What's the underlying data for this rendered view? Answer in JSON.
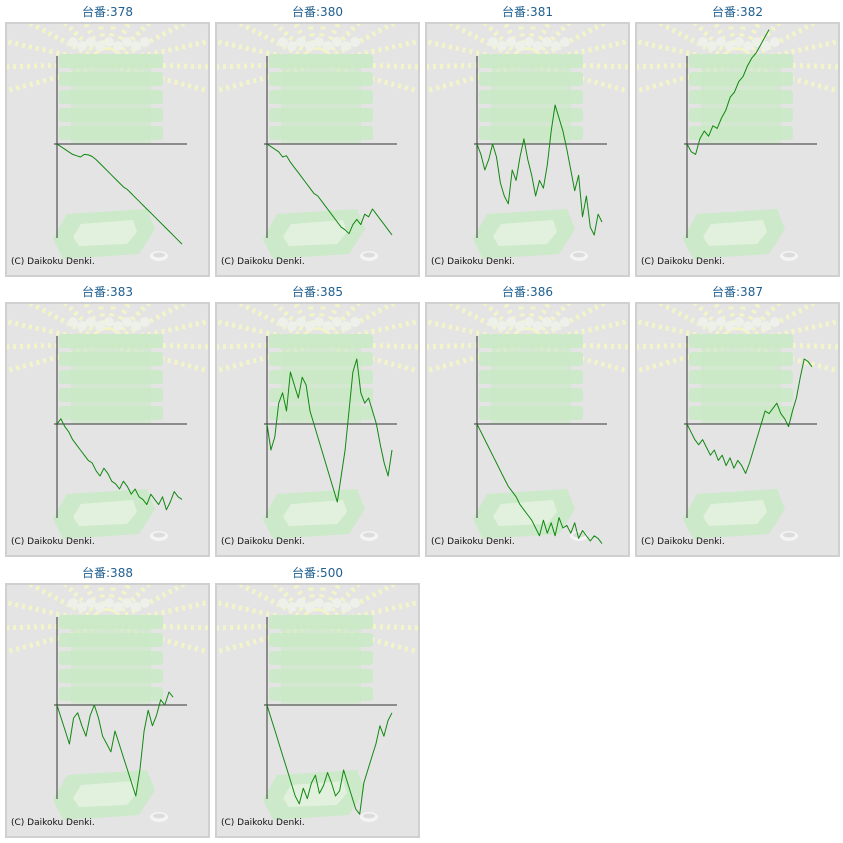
{
  "colors": {
    "title": "#1f5f8f",
    "line": "#118811",
    "axis": "#333333",
    "panel_bg": "#e4e4e4",
    "panel_border": "#d0d0d0",
    "watermark_green": "#c9e9c5",
    "watermark_rays": "#f3f5c8"
  },
  "copyright": "(C) Daikoku Denki.",
  "chart_data": [
    {
      "type": "line",
      "title": "台番:378",
      "y": [
        0,
        -1,
        -2,
        -3,
        -4,
        -4.5,
        -5,
        -4,
        -4.2,
        -4.8,
        -6,
        -7.5,
        -9,
        -10.5,
        -12,
        -13.5,
        -15,
        -16.5,
        -17.5,
        -19,
        -20.5,
        -22,
        -23.5,
        -25,
        -26.5,
        -28,
        -29.5,
        -31,
        -32.5,
        -34,
        -35.5,
        -37,
        -38.5
      ]
    },
    {
      "type": "line",
      "title": "台番:380",
      "y": [
        0,
        -1,
        -2,
        -3,
        -5,
        -4.5,
        -7,
        -9,
        -11,
        -13,
        -15,
        -17,
        -19,
        -20,
        -22,
        -24,
        -26,
        -28,
        -30,
        -32,
        -33,
        -34.5,
        -31,
        -29,
        -31,
        -27,
        -28,
        -25,
        -27,
        -29,
        -31,
        -33,
        -35
      ]
    },
    {
      "type": "line",
      "title": "台番:381",
      "y": [
        0,
        -4,
        -10,
        -6,
        0,
        -5,
        -15,
        -20,
        -23,
        -10,
        -14,
        -5,
        2,
        -6,
        -12,
        -20,
        -14,
        -17,
        -8,
        5,
        15,
        10,
        5,
        -2,
        -10,
        -18,
        -12,
        -28,
        -20,
        -32,
        -35,
        -27,
        -30
      ]
    },
    {
      "type": "line",
      "title": "台番:382",
      "y": [
        0,
        -3,
        -4,
        2,
        5,
        3,
        7,
        6,
        10,
        13,
        18,
        20,
        24,
        26,
        30,
        33,
        35,
        38,
        41,
        44
      ]
    },
    {
      "type": "line",
      "title": "台番:383",
      "y": [
        0,
        2,
        -1,
        -3,
        -6,
        -8,
        -10,
        -12,
        -14,
        -15,
        -18,
        -20,
        -17,
        -19,
        -22,
        -23,
        -25,
        -22,
        -24,
        -27,
        -25,
        -28,
        -29,
        -31,
        -27,
        -29,
        -31,
        -28,
        -33,
        -30,
        -26,
        -28,
        -29
      ]
    },
    {
      "type": "line",
      "title": "台番:385",
      "y": [
        0,
        -10,
        -5,
        8,
        12,
        5,
        20,
        15,
        10,
        18,
        15,
        5,
        0,
        -5,
        -10,
        -15,
        -20,
        -25,
        -30,
        -20,
        -10,
        5,
        20,
        25,
        12,
        8,
        10,
        5,
        0,
        -8,
        -15,
        -20,
        -10
      ]
    },
    {
      "type": "line",
      "title": "台番:386",
      "y": [
        0,
        -3,
        -6,
        -9,
        -12,
        -15,
        -18,
        -21,
        -24,
        -26,
        -28,
        -31,
        -33,
        -35,
        -37,
        -40,
        -43,
        -37,
        -42,
        -38,
        -43,
        -36,
        -40,
        -39,
        -42,
        -38,
        -44,
        -41,
        -43,
        -45,
        -43,
        -44,
        -46
      ]
    },
    {
      "type": "line",
      "title": "台番:387",
      "y": [
        0,
        -3,
        -6,
        -8,
        -6,
        -9,
        -12,
        -10,
        -14,
        -12,
        -16,
        -13,
        -17,
        -14,
        -16,
        -19,
        -15,
        -10,
        -5,
        0,
        5,
        4,
        6,
        8,
        4,
        2,
        -1,
        5,
        10,
        18,
        25,
        24,
        22
      ]
    },
    {
      "type": "line",
      "title": "台番:388",
      "y": [
        0,
        -5,
        -10,
        -15,
        -5,
        -3,
        -8,
        -12,
        -4,
        0,
        -5,
        -12,
        -15,
        -18,
        -10,
        -15,
        -20,
        -25,
        -30,
        -35,
        -25,
        -10,
        -2,
        -8,
        -4,
        2,
        0,
        5,
        3
      ]
    },
    {
      "type": "line",
      "title": "台番:500",
      "y": [
        0,
        -5,
        -10,
        -15,
        -20,
        -25,
        -30,
        -35,
        -38,
        -32,
        -36,
        -30,
        -27,
        -34,
        -31,
        -26,
        -30,
        -35,
        -33,
        -25,
        -30,
        -35,
        -40,
        -42,
        -30,
        -25,
        -20,
        -15,
        -8,
        -12,
        -6,
        -3
      ]
    }
  ]
}
